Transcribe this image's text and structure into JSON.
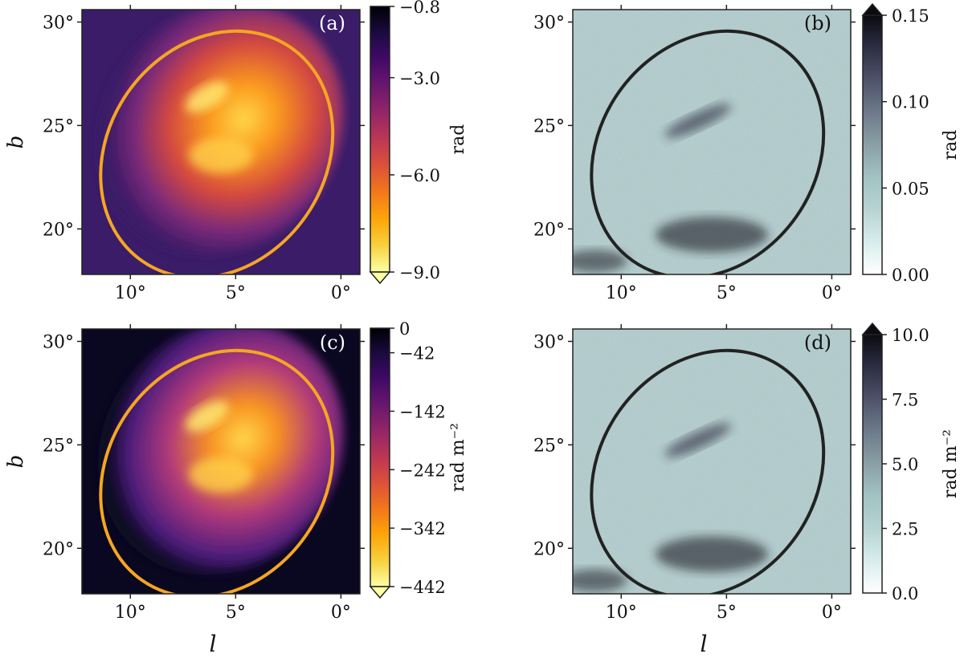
{
  "chart_data": [
    {
      "type": "heatmap",
      "panel_label": "(a)",
      "xlabel": "",
      "ylabel": "b",
      "xlim": [
        12.3,
        -0.9
      ],
      "ylim": [
        17.8,
        30.6
      ],
      "xticks": [
        10,
        5,
        0
      ],
      "xtick_labels": [
        "10°",
        "5°",
        "0°"
      ],
      "yticks": [
        20,
        25,
        30
      ],
      "ytick_labels": [
        "20°",
        "25°",
        "30°"
      ],
      "colormap": "inferno_reversed",
      "colorbar": {
        "label": "rad",
        "range": [
          -9.0,
          -0.8
        ],
        "ticks": [
          -0.8,
          -3.0,
          -6.0,
          -9.0
        ],
        "tick_labels": [
          "−0.8",
          "−3.0",
          "−6.0",
          "−9.0"
        ],
        "extend": "min"
      },
      "ellipse": {
        "center_l": 5.9,
        "center_b": 23.6,
        "color": "#f5a623"
      }
    },
    {
      "type": "heatmap",
      "panel_label": "(b)",
      "xlabel": "",
      "ylabel": "",
      "xlim": [
        12.3,
        -0.9
      ],
      "ylim": [
        17.8,
        30.6
      ],
      "xticks": [
        10,
        5,
        0
      ],
      "xtick_labels": [
        "10°",
        "5°",
        "0°"
      ],
      "yticks": [
        20,
        25,
        30
      ],
      "ytick_labels": [
        "20°",
        "25°",
        "30°"
      ],
      "colormap": "bone_reversed",
      "colorbar": {
        "label": "rad",
        "range": [
          0.0,
          0.15
        ],
        "ticks": [
          0.0,
          0.05,
          0.1,
          0.15
        ],
        "tick_labels": [
          "0.00",
          "0.05",
          "0.10",
          "0.15"
        ],
        "extend": "max"
      },
      "ellipse": {
        "center_l": 5.9,
        "center_b": 23.6,
        "color": "#222222"
      }
    },
    {
      "type": "heatmap",
      "panel_label": "(c)",
      "xlabel": "l",
      "ylabel": "b",
      "xlim": [
        12.3,
        -0.9
      ],
      "ylim": [
        17.8,
        30.6
      ],
      "xticks": [
        10,
        5,
        0
      ],
      "xtick_labels": [
        "10°",
        "5°",
        "0°"
      ],
      "yticks": [
        20,
        25,
        30
      ],
      "ytick_labels": [
        "20°",
        "25°",
        "30°"
      ],
      "colormap": "inferno_reversed",
      "colorbar": {
        "label": "rad m⁻²",
        "range": [
          -442,
          0
        ],
        "ticks": [
          0,
          -42,
          -142,
          -242,
          -342,
          -442
        ],
        "tick_labels": [
          "0",
          "−42",
          "−142",
          "−242",
          "−342",
          "−442"
        ],
        "extend": "min"
      },
      "ellipse": {
        "center_l": 5.9,
        "center_b": 23.6,
        "color": "#f5a623"
      }
    },
    {
      "type": "heatmap",
      "panel_label": "(d)",
      "xlabel": "l",
      "ylabel": "",
      "xlim": [
        12.3,
        -0.9
      ],
      "ylim": [
        17.8,
        30.6
      ],
      "xticks": [
        10,
        5,
        0
      ],
      "xtick_labels": [
        "10°",
        "5°",
        "0°"
      ],
      "yticks": [
        20,
        25,
        30
      ],
      "ytick_labels": [
        "20°",
        "25°",
        "30°"
      ],
      "colormap": "bone_reversed",
      "colorbar": {
        "label": "rad m⁻²",
        "range": [
          0.0,
          10.0
        ],
        "ticks": [
          0.0,
          2.5,
          5.0,
          7.5,
          10.0
        ],
        "tick_labels": [
          "0.0",
          "2.5",
          "5.0",
          "7.5",
          "10.0"
        ],
        "extend": "max"
      },
      "ellipse": {
        "center_l": 5.9,
        "center_b": 23.6,
        "color": "#222222"
      }
    }
  ]
}
